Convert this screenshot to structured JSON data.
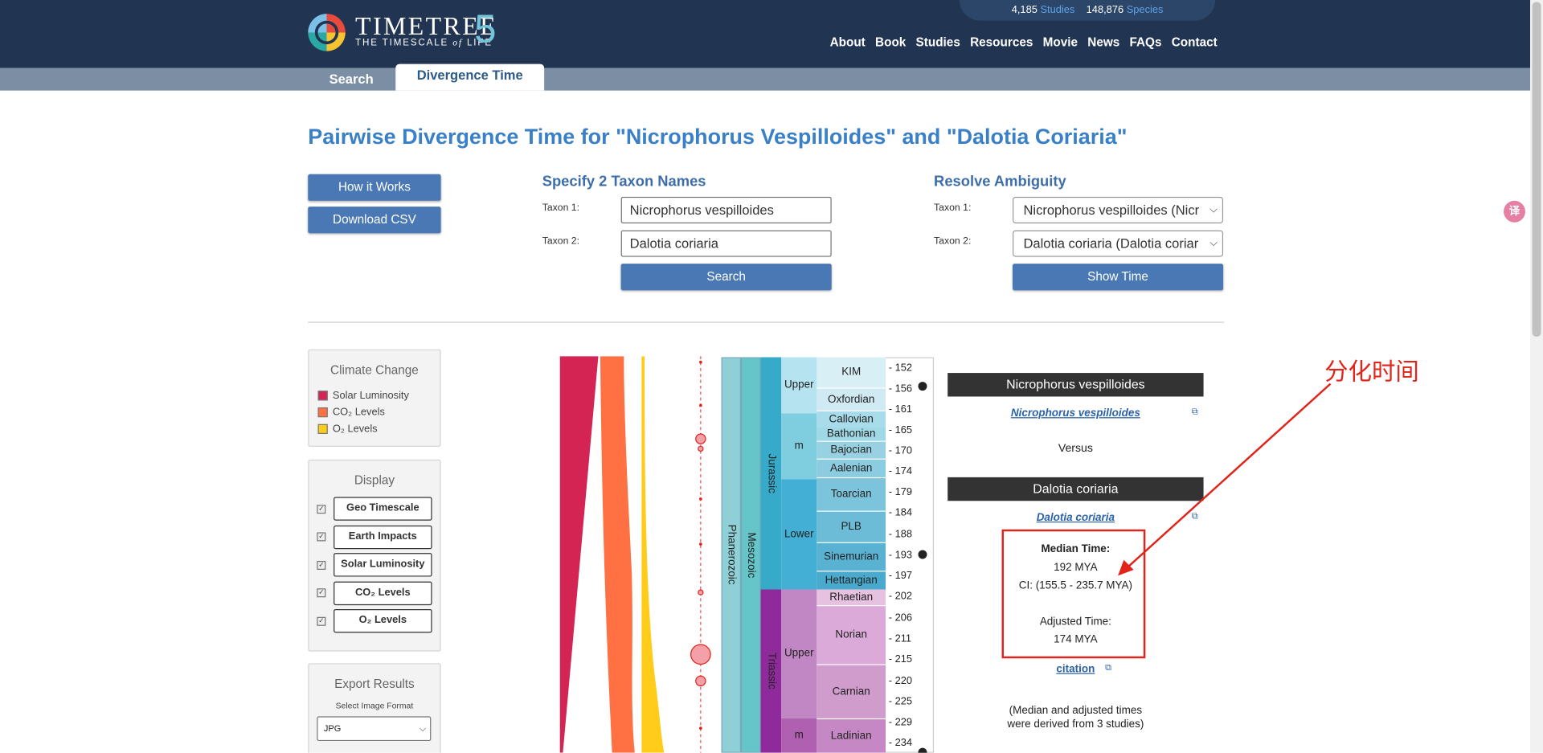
{
  "header": {
    "brand": "TIMETREE",
    "brand_sub_pre": "THE TIMESCALE ",
    "brand_sub_of": "of",
    "brand_sub_post": " LIFE",
    "version": "5",
    "stats": {
      "studies_count": "4,185",
      "studies_label": "Studies",
      "species_count": "148,876",
      "species_label": "Species"
    },
    "nav": [
      "About",
      "Book",
      "Studies",
      "Resources",
      "Movie",
      "News",
      "FAQs",
      "Contact"
    ]
  },
  "tabs": {
    "search": "Search",
    "divergence": "Divergence Time"
  },
  "page_title": "Pairwise Divergence Time for \"Nicrophorus Vespilloides\" and \"Dalotia Coriaria\"",
  "left_buttons": {
    "how": "How it Works",
    "csv": "Download CSV"
  },
  "specify": {
    "title": "Specify 2 Taxon Names",
    "taxon1_label": "Taxon 1:",
    "taxon1_value": "Nicrophorus vespilloides",
    "taxon2_label": "Taxon 2:",
    "taxon2_value": "Dalotia coriaria",
    "search_btn": "Search"
  },
  "resolve": {
    "title": "Resolve Ambiguity",
    "taxon1_label": "Taxon 1:",
    "taxon1_value": "Nicrophorus vespilloides (Nicr",
    "taxon2_label": "Taxon 2:",
    "taxon2_value": "Dalotia coriaria (Dalotia coriar",
    "show_btn": "Show Time"
  },
  "climate": {
    "title": "Climate Change",
    "items": [
      {
        "label": "Solar Luminosity",
        "color": "#d42453"
      },
      {
        "label": "CO₂ Levels",
        "color": "#ff7043"
      },
      {
        "label": "O₂ Levels",
        "color": "#ffcc1a"
      }
    ]
  },
  "display": {
    "title": "Display",
    "items": [
      "Geo Timescale",
      "Earth Impacts",
      "Solar Luminosity",
      "CO₂ Levels",
      "O₂ Levels"
    ]
  },
  "export": {
    "title": "Export Results",
    "select_label": "Select Image Format",
    "format": "JPG"
  },
  "timescale": {
    "eon": "Phanerozoic",
    "era": "Mesozoic",
    "periods": [
      "Jurassic",
      "Triassic"
    ],
    "epochs": [
      "Upper",
      "m",
      "Lower",
      "Upper",
      "m"
    ],
    "stages": [
      "KIM",
      "Oxfordian",
      "Callovian",
      "Bathonian",
      "Bajocian",
      "Aalenian",
      "Toarcian",
      "PLB",
      "Sinemurian",
      "Hettangian",
      "Rhaetian",
      "Norian",
      "Carnian",
      "Ladinian"
    ],
    "ticks": [
      "- 152",
      "- 156",
      "- 161",
      "- 165",
      "- 170",
      "- 174",
      "- 179",
      "- 184",
      "- 188",
      "- 193",
      "- 197",
      "- 202",
      "- 206",
      "- 211",
      "- 215",
      "- 220",
      "- 225",
      "- 229",
      "- 234"
    ]
  },
  "result": {
    "taxon1": "Nicrophorus vespilloides",
    "taxon1_link": "Nicrophorus vespilloides",
    "versus": "Versus",
    "taxon2": "Dalotia coriaria",
    "taxon2_link": "Dalotia coriaria",
    "median_label": "Median Time:",
    "median_value": "192 MYA",
    "ci": "CI: (155.5 - 235.7 MYA)",
    "adjusted_label": "Adjusted Time:",
    "adjusted_value": "174 MYA",
    "citation": "citation",
    "note_line1": "(Median and adjusted times",
    "note_line2": "were derived from 3 studies)"
  },
  "annotation": "分化时间",
  "translate_icon": "译"
}
